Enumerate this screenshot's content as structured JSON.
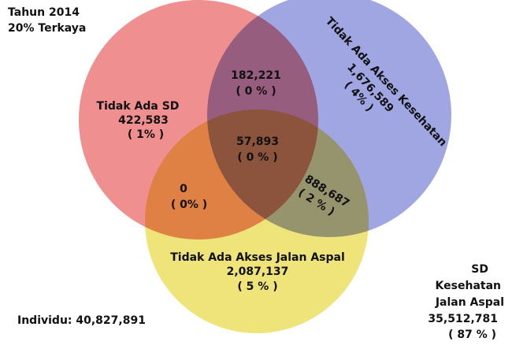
{
  "header": {
    "line1": "Tahun 2014",
    "line2": "20% Terkaya"
  },
  "sets": [
    {
      "label": "Tidak Ada SD",
      "count": "422,583",
      "share": "( 1% )"
    },
    {
      "label": "Tidak Ada Akses Kesehatan",
      "count": "1,676,589",
      "share": "( 4% )"
    },
    {
      "label": "Tidak Ada Akses Jalan Aspal",
      "count": "2,087,137",
      "share": "( 5 % )"
    }
  ],
  "overlaps": [
    {
      "count": "182,221",
      "share": "( 0 % )"
    },
    {
      "count": "57,893",
      "share": "( 0 % )"
    },
    {
      "count": "0",
      "share": "( 0% )"
    },
    {
      "count": "888,687",
      "share": "( 2 % )"
    }
  ],
  "outside": {
    "lines": [
      "SD",
      "Kesehatan",
      "Jalan Aspal"
    ],
    "count": "35,512,781",
    "share": "( 87 % )"
  },
  "total": "Individu: 40,827,891"
}
